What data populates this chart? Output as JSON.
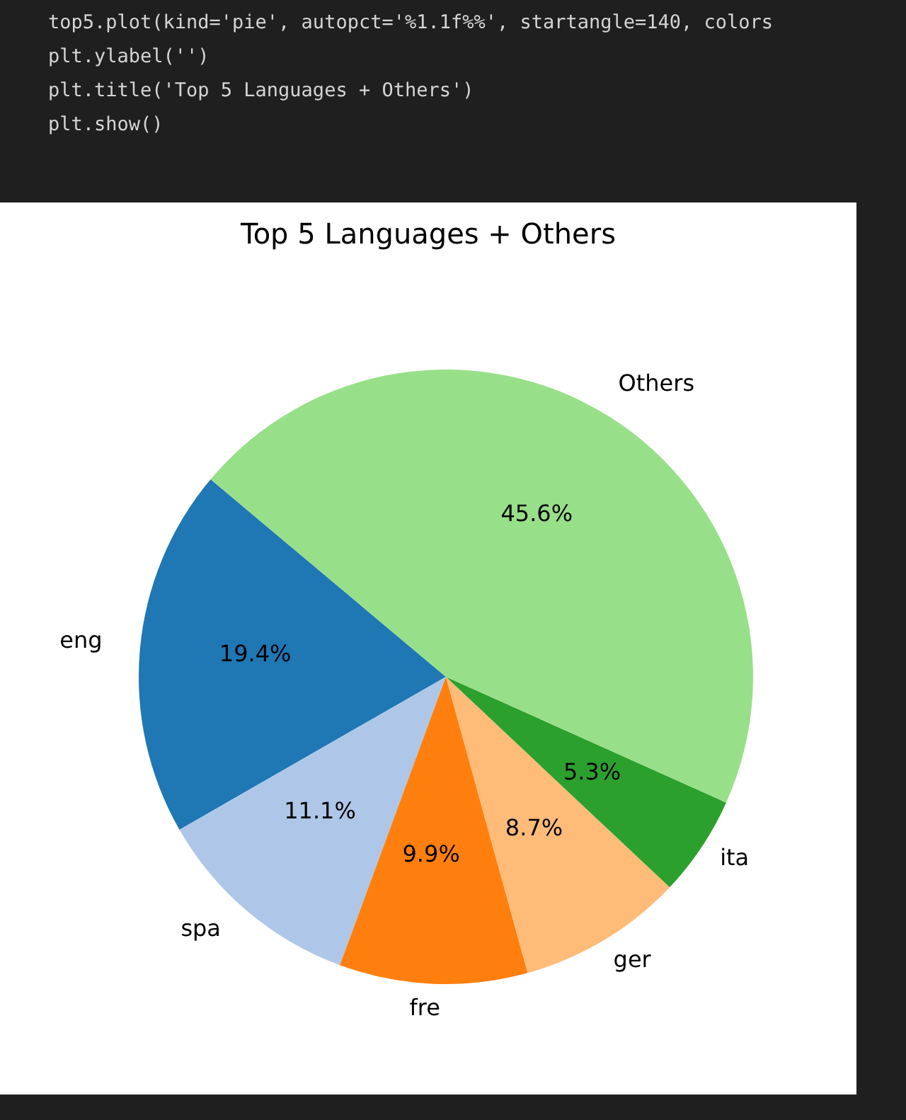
{
  "chart_data": {
    "type": "pie",
    "title": "Top 5 Languages + Others",
    "categories": [
      "eng",
      "spa",
      "fre",
      "ger",
      "ita",
      "Others"
    ],
    "values": [
      19.4,
      11.1,
      9.9,
      8.7,
      5.3,
      45.6
    ],
    "value_labels": [
      "19.4%",
      "11.1%",
      "9.9%",
      "8.7%",
      "5.3%",
      "45.6%"
    ],
    "colors": [
      "#1f77b4",
      "#aec7e8",
      "#ff7f0e",
      "#ffbb78",
      "#2ca02c",
      "#98df8a"
    ],
    "annotations": [
      "top5.plot(kind='pie', autopct='%1.1f%%', startangle=140, colors",
      "plt.ylabel('')",
      "plt.title('Top 5 Languages + Others')",
      "plt.show()"
    ],
    "legend": false
  }
}
